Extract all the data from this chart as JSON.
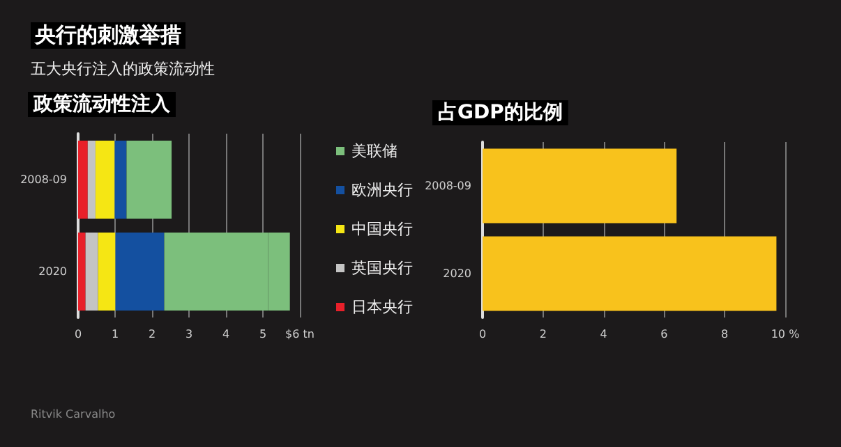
{
  "chart_data": [
    {
      "type": "bar",
      "orientation": "horizontal",
      "stacked": true,
      "title": "政策流动性注入",
      "annotations": [
        "央行的刺激举措",
        "五大央行注入的政策流动性",
        "Ritvik Carvalho"
      ],
      "categories": [
        "2008-09",
        "2020"
      ],
      "series": [
        {
          "name": "日本央行",
          "color": "#e8202a",
          "values": [
            0.26,
            0.2
          ]
        },
        {
          "name": "英国央行",
          "color": "#c4c4c4",
          "values": [
            0.21,
            0.34
          ]
        },
        {
          "name": "中国央行",
          "color": "#f5e614",
          "values": [
            0.52,
            0.47
          ]
        },
        {
          "name": "欧洲央行",
          "color": "#1450a0",
          "values": [
            0.32,
            1.32
          ]
        },
        {
          "name": "美联储",
          "color": "#7cbf7c",
          "values": [
            1.22,
            2.81
          ]
        },
        {
          "color": "#7cbf7c",
          "values": [
            null,
            0.59
          ]
        }
      ],
      "xlim": [
        0,
        6
      ],
      "xticks": [
        0,
        1,
        2,
        3,
        4,
        5,
        {
          "value": 6,
          "label": "$6 tn"
        }
      ],
      "grid": "x",
      "legend": "right"
    },
    {
      "type": "bar",
      "orientation": "horizontal",
      "title": "占GDP的比例",
      "categories": [
        "2008-09",
        "2020"
      ],
      "values": [
        6.41,
        9.71
      ],
      "color": "#f8c21c",
      "xlim": [
        0,
        10
      ],
      "xticks": [
        0,
        2,
        4,
        6,
        8,
        {
          "value": 10,
          "label": "10 %"
        }
      ],
      "grid": "x"
    }
  ]
}
